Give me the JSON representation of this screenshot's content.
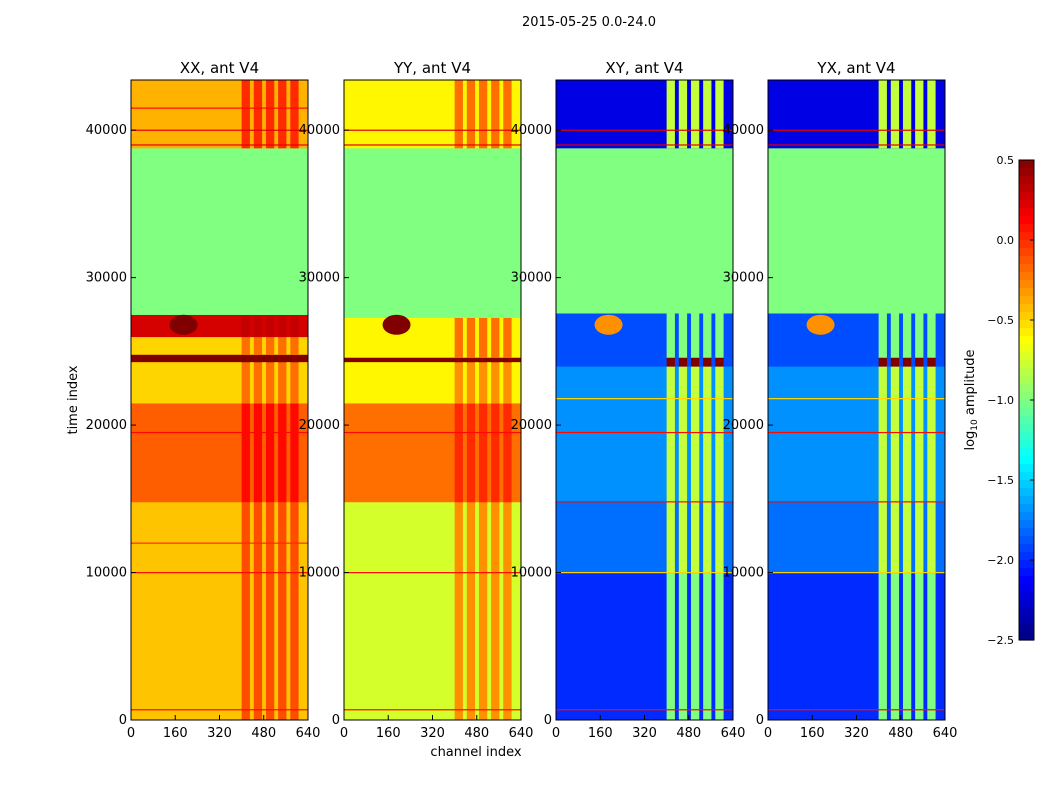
{
  "chart_data": {
    "type": "heatmap",
    "title": "2015-05-25 0.0-24.0",
    "xlabel": "channel index",
    "ylabel": "time index",
    "xlim": [
      0,
      640
    ],
    "ylim": [
      0,
      43400
    ],
    "xticks": [
      0,
      160,
      320,
      480,
      640
    ],
    "yticks": [
      0,
      10000,
      20000,
      30000,
      40000
    ],
    "colormap": "jet",
    "colorbar": {
      "label": "log10 amplitude",
      "label_main": "log",
      "label_sub": "10",
      "label_rest": " amplitude",
      "vmin": -2.5,
      "vmax": 0.5,
      "ticks": [
        "0.5",
        "0.0",
        "−0.5",
        "−1.0",
        "−1.5",
        "−2.0",
        "−2.5"
      ],
      "tick_values": [
        0.5,
        0.0,
        -0.5,
        -1.0,
        -1.5,
        -2.0,
        -2.5
      ]
    },
    "rfi_channels": [
      400,
      620
    ],
    "panels": [
      {
        "title": "XX, ant V4",
        "segments": [
          [
            0,
            14800,
            -0.45,
            -0.1
          ],
          [
            14800,
            21500,
            -0.15,
            0.1
          ],
          [
            21500,
            24300,
            -0.5,
            -0.2
          ],
          [
            24300,
            24800,
            0.5,
            0.5
          ],
          [
            24800,
            26000,
            -0.5,
            -0.2
          ],
          [
            26000,
            27500,
            0.25,
            0.3
          ],
          [
            27500,
            38800,
            -1.0,
            -1.0
          ],
          [
            38800,
            43400,
            -0.4,
            0.0
          ]
        ],
        "lines": [
          [
            700,
            0.1
          ],
          [
            10000,
            0.1
          ],
          [
            12000,
            0.0
          ],
          [
            19500,
            0.1
          ],
          [
            39000,
            0.2
          ],
          [
            40000,
            0.2
          ],
          [
            41500,
            0.1
          ]
        ],
        "hotspot": [
          190,
          26800,
          0.5
        ]
      },
      {
        "title": "YY, ant V4",
        "segments": [
          [
            0,
            14800,
            -0.75,
            -0.3
          ],
          [
            14800,
            21500,
            -0.2,
            0.0
          ],
          [
            21500,
            24300,
            -0.6,
            -0.3
          ],
          [
            24300,
            24600,
            0.5,
            0.5
          ],
          [
            24600,
            27300,
            -0.6,
            -0.2
          ],
          [
            27300,
            38800,
            -1.0,
            -1.0
          ],
          [
            38800,
            43400,
            -0.6,
            -0.2
          ]
        ],
        "lines": [
          [
            700,
            0.1
          ],
          [
            10000,
            0.1
          ],
          [
            19500,
            0.1
          ],
          [
            39000,
            0.2
          ],
          [
            40000,
            0.2
          ]
        ],
        "hotspot": [
          190,
          26800,
          0.5
        ]
      },
      {
        "title": "XY, ant V4",
        "segments": [
          [
            0,
            10000,
            -2.0,
            -1.0
          ],
          [
            10000,
            14800,
            -1.8,
            -0.8
          ],
          [
            14800,
            24000,
            -1.7,
            -0.8
          ],
          [
            24000,
            24600,
            -1.9,
            0.5
          ],
          [
            24600,
            27600,
            -1.9,
            -1.0
          ],
          [
            27600,
            38800,
            -1.0,
            -1.0
          ],
          [
            38800,
            43400,
            -2.2,
            -0.8
          ]
        ],
        "lines": [
          [
            700,
            0.1
          ],
          [
            10000,
            -0.5
          ],
          [
            14800,
            0.1
          ],
          [
            19500,
            0.1
          ],
          [
            21800,
            -0.5
          ],
          [
            39000,
            0.2
          ],
          [
            40000,
            0.2
          ]
        ],
        "hotspot": [
          190,
          26800,
          -0.3
        ]
      },
      {
        "title": "YX, ant V4",
        "segments": [
          [
            0,
            10000,
            -2.0,
            -1.0
          ],
          [
            10000,
            14800,
            -1.8,
            -0.8
          ],
          [
            14800,
            24000,
            -1.7,
            -0.8
          ],
          [
            24000,
            24600,
            -1.9,
            0.5
          ],
          [
            24600,
            27600,
            -1.9,
            -1.0
          ],
          [
            27600,
            38800,
            -1.0,
            -1.0
          ],
          [
            38800,
            43400,
            -2.2,
            -0.8
          ]
        ],
        "lines": [
          [
            700,
            0.1
          ],
          [
            10000,
            -0.5
          ],
          [
            14800,
            0.1
          ],
          [
            19500,
            0.1
          ],
          [
            21800,
            -0.5
          ],
          [
            39000,
            0.2
          ],
          [
            40000,
            0.2
          ]
        ],
        "hotspot": [
          190,
          26800,
          -0.3
        ]
      }
    ]
  }
}
